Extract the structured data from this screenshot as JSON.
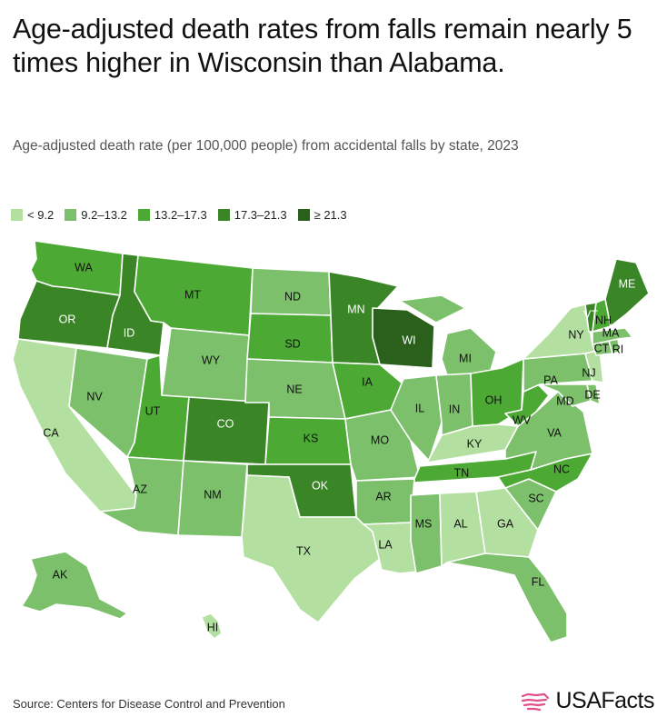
{
  "title": "Age-adjusted death rates from falls remain nearly 5 times higher in Wisconsin than Alabama.",
  "subtitle": "Age-adjusted death rate (per 100,000 people) from accidental falls by state, 2023",
  "legend": [
    {
      "label": "< 9.2",
      "color": "#b3e0a0"
    },
    {
      "label": "9.2–13.2",
      "color": "#7cc06b"
    },
    {
      "label": "13.2–17.3",
      "color": "#4caa34"
    },
    {
      "label": "17.3–21.3",
      "color": "#3a8526"
    },
    {
      "label": "≥ 21.3",
      "color": "#2a5f1c"
    }
  ],
  "states": [
    {
      "code": "WA",
      "bin": 2
    },
    {
      "code": "OR",
      "bin": 3
    },
    {
      "code": "CA",
      "bin": 0
    },
    {
      "code": "ID",
      "bin": 3
    },
    {
      "code": "NV",
      "bin": 1
    },
    {
      "code": "MT",
      "bin": 2
    },
    {
      "code": "WY",
      "bin": 1
    },
    {
      "code": "UT",
      "bin": 2
    },
    {
      "code": "AZ",
      "bin": 1
    },
    {
      "code": "CO",
      "bin": 3
    },
    {
      "code": "NM",
      "bin": 1
    },
    {
      "code": "ND",
      "bin": 1
    },
    {
      "code": "SD",
      "bin": 2
    },
    {
      "code": "NE",
      "bin": 1
    },
    {
      "code": "KS",
      "bin": 2
    },
    {
      "code": "OK",
      "bin": 3
    },
    {
      "code": "TX",
      "bin": 0
    },
    {
      "code": "MN",
      "bin": 3
    },
    {
      "code": "IA",
      "bin": 2
    },
    {
      "code": "MO",
      "bin": 1
    },
    {
      "code": "AR",
      "bin": 1
    },
    {
      "code": "LA",
      "bin": 0
    },
    {
      "code": "WI",
      "bin": 4
    },
    {
      "code": "IL",
      "bin": 1
    },
    {
      "code": "MI",
      "bin": 1
    },
    {
      "code": "IN",
      "bin": 1
    },
    {
      "code": "OH",
      "bin": 2
    },
    {
      "code": "KY",
      "bin": 0
    },
    {
      "code": "TN",
      "bin": 2
    },
    {
      "code": "MS",
      "bin": 1
    },
    {
      "code": "AL",
      "bin": 0
    },
    {
      "code": "GA",
      "bin": 0
    },
    {
      "code": "FL",
      "bin": 1
    },
    {
      "code": "SC",
      "bin": 1
    },
    {
      "code": "NC",
      "bin": 2
    },
    {
      "code": "VA",
      "bin": 1
    },
    {
      "code": "WV",
      "bin": 2
    },
    {
      "code": "MD",
      "bin": 1
    },
    {
      "code": "DE",
      "bin": 1
    },
    {
      "code": "PA",
      "bin": 1
    },
    {
      "code": "NJ",
      "bin": 0
    },
    {
      "code": "NY",
      "bin": 0
    },
    {
      "code": "CT",
      "bin": 1
    },
    {
      "code": "RI",
      "bin": 1
    },
    {
      "code": "MA",
      "bin": 1
    },
    {
      "code": "VT",
      "bin": 3
    },
    {
      "code": "NH",
      "bin": 2
    },
    {
      "code": "ME",
      "bin": 3
    },
    {
      "code": "AK",
      "bin": 1
    },
    {
      "code": "HI",
      "bin": 0
    }
  ],
  "source": "Source: Centers for Disease Control and Prevention",
  "brand": "USAFacts",
  "brand_icon": "usa-flag-map-icon",
  "brand_icon_color": "#e0508a"
}
